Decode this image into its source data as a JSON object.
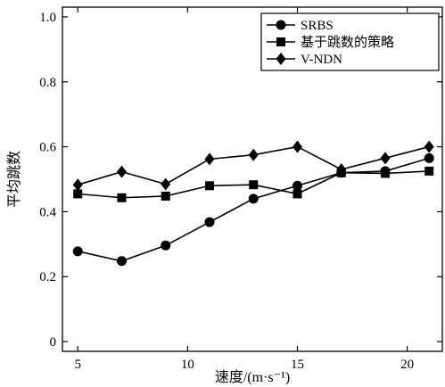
{
  "chart_data": {
    "type": "line",
    "title": "",
    "xlabel": "速度/(m·s⁻¹)",
    "ylabel": "平均跳数",
    "xlim": [
      4.3,
      21.6
    ],
    "ylim": [
      -0.03,
      1.03
    ],
    "xticks": [
      5,
      10,
      15,
      20
    ],
    "xtick_labels": [
      "5",
      "10",
      "15",
      "20"
    ],
    "yticks": [
      0,
      0.2,
      0.4,
      0.6,
      0.8,
      1.0
    ],
    "ytick_labels": [
      "0",
      "0.2",
      "0.4",
      "0.6",
      "0.8",
      "1.0"
    ],
    "grid": false,
    "legend_position": "top-right",
    "x": [
      5,
      7,
      9,
      11,
      13,
      15,
      17,
      19,
      21
    ],
    "series": [
      {
        "name": "SRBS",
        "marker": "circle",
        "values": [
          0.278,
          0.248,
          0.296,
          0.368,
          0.44,
          0.48,
          0.52,
          0.525,
          0.565
        ]
      },
      {
        "name": "基于跳数的策略",
        "marker": "square",
        "values": [
          0.455,
          0.443,
          0.448,
          0.48,
          0.483,
          0.455,
          0.52,
          0.518,
          0.525
        ]
      },
      {
        "name": "V-NDN",
        "marker": "diamond",
        "values": [
          0.483,
          0.523,
          0.485,
          0.562,
          0.575,
          0.6,
          0.53,
          0.565,
          0.6
        ]
      }
    ]
  }
}
